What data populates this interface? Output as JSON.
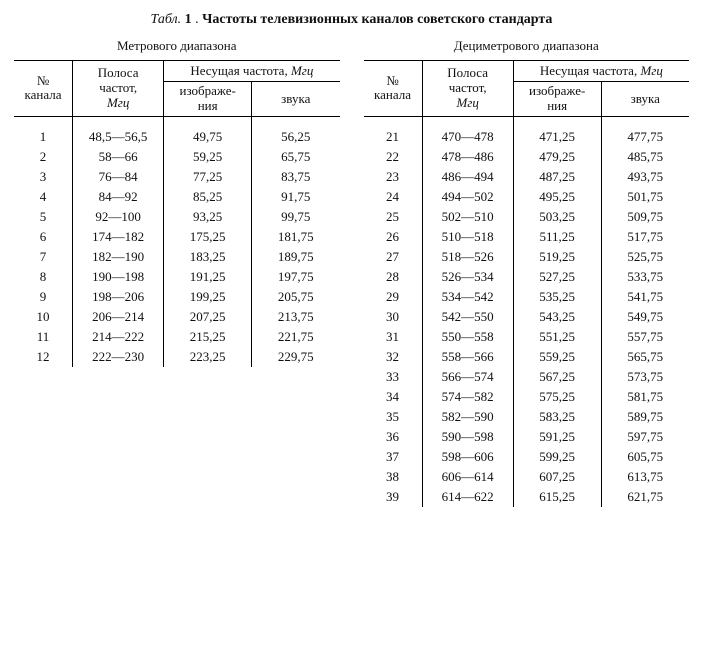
{
  "background_color": "#ffffff",
  "text_color": "#111111",
  "border_color": "#000000",
  "font_family": "Times New Roman, serif",
  "title": {
    "tabl_label": "Табл.",
    "tabl_number": "1",
    "dot": ".",
    "text": "Частоты телевизионных каналов советского стандарта"
  },
  "headers": {
    "channel_no_line1": "№",
    "channel_no_line2": "канала",
    "band_line1": "Полоса",
    "band_line2": "частот,",
    "band_unit": "Мгц",
    "carrier_line": "Несущая частота,",
    "carrier_unit": "Мгц",
    "video_line1": "изображе-",
    "video_line2": "ния",
    "audio": "звука"
  },
  "left": {
    "range_title": "Метрового диапазона",
    "rows": [
      {
        "n": "1",
        "band": "48,5—56,5",
        "v": "49,75",
        "a": "56,25"
      },
      {
        "n": "2",
        "band": "58—66",
        "v": "59,25",
        "a": "65,75"
      },
      {
        "n": "3",
        "band": "76—84",
        "v": "77,25",
        "a": "83,75"
      },
      {
        "n": "4",
        "band": "84—92",
        "v": "85,25",
        "a": "91,75"
      },
      {
        "n": "5",
        "band": "92—100",
        "v": "93,25",
        "a": "99,75"
      },
      {
        "n": "6",
        "band": "174—182",
        "v": "175,25",
        "a": "181,75"
      },
      {
        "n": "7",
        "band": "182—190",
        "v": "183,25",
        "a": "189,75"
      },
      {
        "n": "8",
        "band": "190—198",
        "v": "191,25",
        "a": "197,75"
      },
      {
        "n": "9",
        "band": "198—206",
        "v": "199,25",
        "a": "205,75"
      },
      {
        "n": "10",
        "band": "206—214",
        "v": "207,25",
        "a": "213,75"
      },
      {
        "n": "11",
        "band": "214—222",
        "v": "215,25",
        "a": "221,75"
      },
      {
        "n": "12",
        "band": "222—230",
        "v": "223,25",
        "a": "229,75"
      }
    ]
  },
  "right": {
    "range_title": "Дециметрового диапазона",
    "rows": [
      {
        "n": "21",
        "band": "470—478",
        "v": "471,25",
        "a": "477,75"
      },
      {
        "n": "22",
        "band": "478—486",
        "v": "479,25",
        "a": "485,75"
      },
      {
        "n": "23",
        "band": "486—494",
        "v": "487,25",
        "a": "493,75"
      },
      {
        "n": "24",
        "band": "494—502",
        "v": "495,25",
        "a": "501,75"
      },
      {
        "n": "25",
        "band": "502—510",
        "v": "503,25",
        "a": "509,75"
      },
      {
        "n": "26",
        "band": "510—518",
        "v": "511,25",
        "a": "517,75"
      },
      {
        "n": "27",
        "band": "518—526",
        "v": "519,25",
        "a": "525,75"
      },
      {
        "n": "28",
        "band": "526—534",
        "v": "527,25",
        "a": "533,75"
      },
      {
        "n": "29",
        "band": "534—542",
        "v": "535,25",
        "a": "541,75"
      },
      {
        "n": "30",
        "band": "542—550",
        "v": "543,25",
        "a": "549,75"
      },
      {
        "n": "31",
        "band": "550—558",
        "v": "551,25",
        "a": "557,75"
      },
      {
        "n": "32",
        "band": "558—566",
        "v": "559,25",
        "a": "565,75"
      },
      {
        "n": "33",
        "band": "566—574",
        "v": "567,25",
        "a": "573,75"
      },
      {
        "n": "34",
        "band": "574—582",
        "v": "575,25",
        "a": "581,75"
      },
      {
        "n": "35",
        "band": "582—590",
        "v": "583,25",
        "a": "589,75"
      },
      {
        "n": "36",
        "band": "590—598",
        "v": "591,25",
        "a": "597,75"
      },
      {
        "n": "37",
        "band": "598—606",
        "v": "599,25",
        "a": "605,75"
      },
      {
        "n": "38",
        "band": "606—614",
        "v": "607,25",
        "a": "613,75"
      },
      {
        "n": "39",
        "band": "614—622",
        "v": "615,25",
        "a": "621,75"
      }
    ]
  }
}
